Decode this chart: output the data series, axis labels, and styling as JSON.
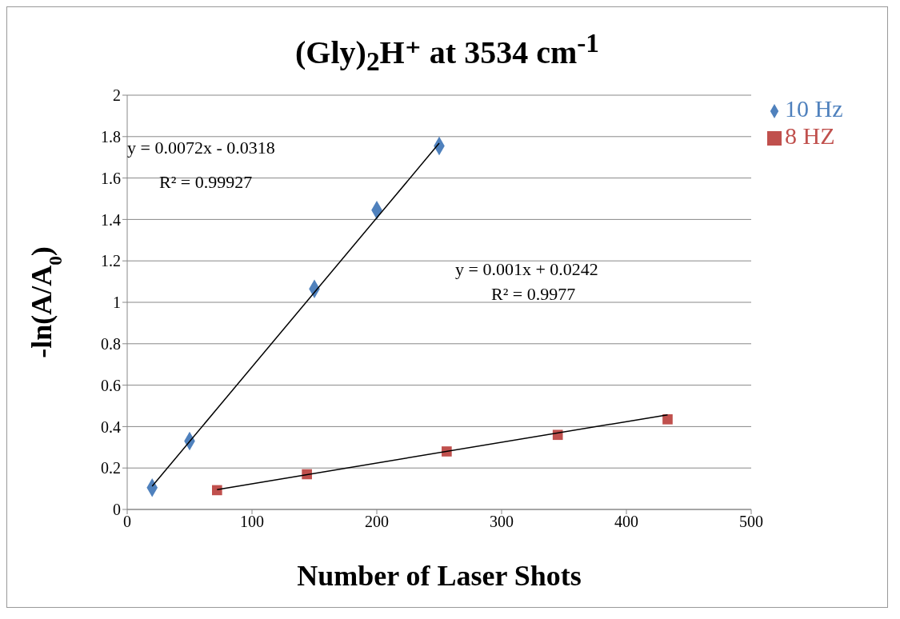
{
  "chart_data": {
    "type": "scatter",
    "title": "(Gly)$_{2}$H⁺ at 3534 cm$^{-1}$",
    "xlabel": "Number of Laser Shots",
    "ylabel": "-ln(A/A$_{0}$)",
    "xlim": [
      0,
      500
    ],
    "xticks": [
      0,
      100,
      200,
      300,
      400,
      500
    ],
    "ylim": [
      0,
      2
    ],
    "yticks": [
      0,
      0.2,
      0.4,
      0.6,
      0.8,
      1,
      1.2,
      1.4,
      1.6,
      1.8,
      2
    ],
    "grid": "y",
    "legend": "right",
    "series": [
      {
        "name": "10 Hz",
        "color": "#4f81bd",
        "marker": "diamond",
        "x": [
          20,
          50,
          150,
          200,
          250
        ],
        "values": [
          0.105,
          0.33,
          1.065,
          1.445,
          1.755
        ]
      },
      {
        "name": "8 HZ",
        "color": "#c0504d",
        "marker": "square",
        "x": [
          72,
          144,
          256,
          345,
          433
        ],
        "values": [
          0.093,
          0.17,
          0.28,
          0.36,
          0.435
        ]
      },
      {
        "type": "line",
        "color": "#000000",
        "marker": "none",
        "x": [
          20,
          250
        ],
        "values": [
          0.112,
          1.768
        ]
      },
      {
        "type": "line",
        "color": "#000000",
        "marker": "none",
        "x": [
          72,
          433
        ],
        "values": [
          0.096,
          0.457
        ]
      }
    ],
    "annotations": [
      "y = 0.0072x - 0.0318",
      "R² = 0.99927",
      "y = 0.001x + 0.0242",
      "R² = 0.9977"
    ]
  }
}
